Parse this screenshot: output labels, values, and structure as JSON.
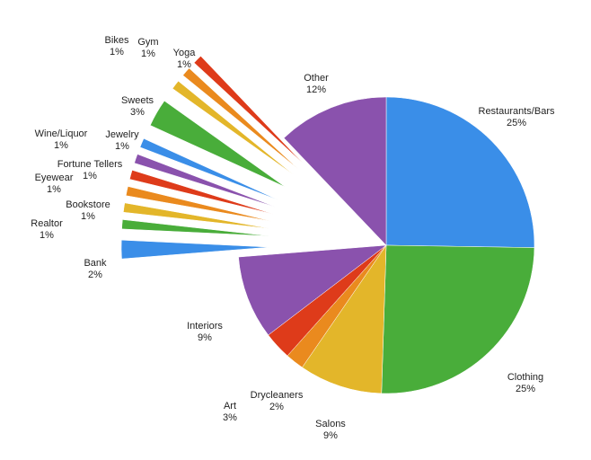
{
  "chart_data": {
    "type": "pie",
    "categories": [
      "Restaurants/Bars",
      "Clothing",
      "Salons",
      "Drycleaners",
      "Art",
      "Interiors",
      "Bank",
      "Realtor",
      "Bookstore",
      "Eyewear",
      "Fortune Tellers",
      "Wine/Liquor",
      "Jewelry",
      "Sweets",
      "Yoga",
      "Gym",
      "Bikes",
      "Other"
    ],
    "values": [
      25,
      25,
      9,
      2,
      3,
      9,
      2,
      1,
      1,
      1,
      1,
      1,
      1,
      3,
      1,
      1,
      1,
      12
    ],
    "value_labels": [
      "25%",
      "25%",
      "9%",
      "2%",
      "3%",
      "9%",
      "2%",
      "1%",
      "1%",
      "1%",
      "1%",
      "1%",
      "1%",
      "3%",
      "1%",
      "1%",
      "1%",
      "12%"
    ],
    "colors": [
      "#3a8ee8",
      "#49ad3a",
      "#e3b62a",
      "#ea8a1e",
      "#de3b1a",
      "#8a52ad",
      "#3a8ee8",
      "#49ad3a",
      "#e3b62a",
      "#ea8a1e",
      "#de3b1a",
      "#8a52ad",
      "#3a8ee8",
      "#49ad3a",
      "#e3b62a",
      "#ea8a1e",
      "#de3b1a",
      "#8a52ad"
    ]
  }
}
